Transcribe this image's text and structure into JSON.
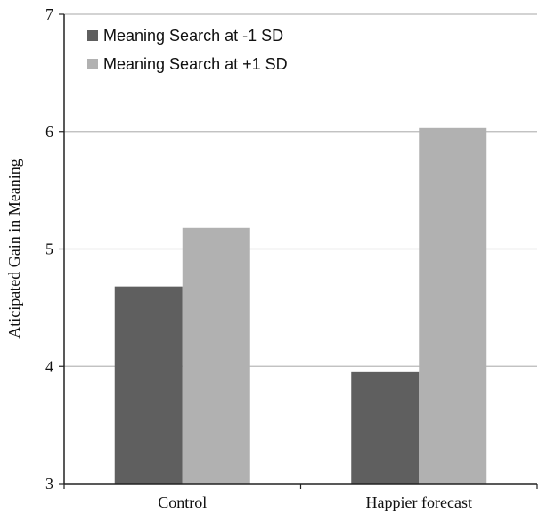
{
  "chart_data": {
    "type": "bar",
    "categories": [
      "Control",
      "Happier forecast"
    ],
    "series": [
      {
        "name": "Meaning Search at -1 SD",
        "values": [
          4.68,
          3.95
        ],
        "color": "#5f5f5f"
      },
      {
        "name": "Meaning Search at +1 SD",
        "values": [
          5.18,
          6.03
        ],
        "color": "#b1b1b1"
      }
    ],
    "title": "",
    "xlabel": "",
    "ylabel": "Aticipated Gain in Meaning",
    "ylim": [
      3,
      7
    ],
    "yticks": [
      3,
      4,
      5,
      6,
      7
    ],
    "grid": true,
    "legend": "top-left"
  }
}
